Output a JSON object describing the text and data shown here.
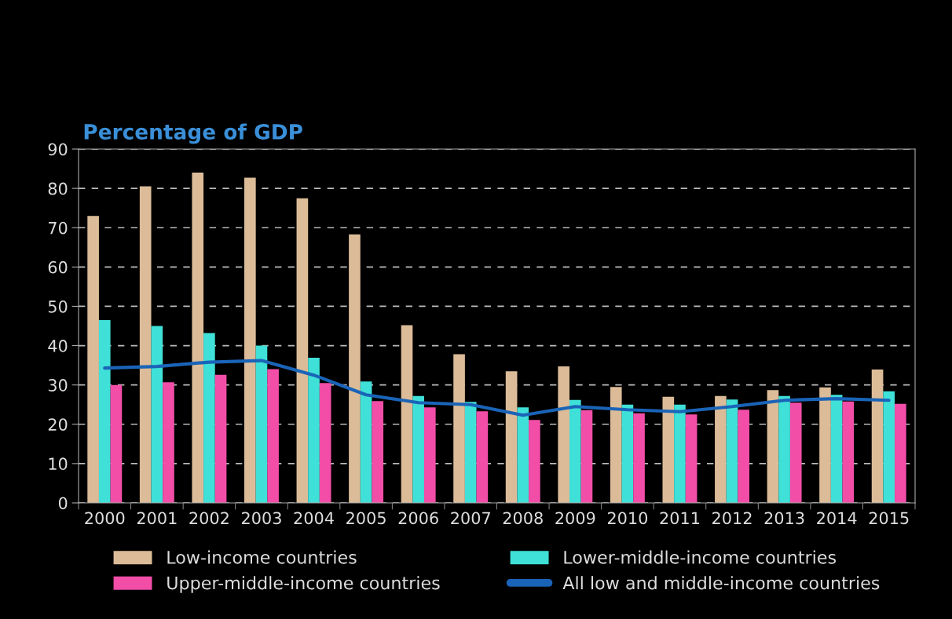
{
  "chart_data": {
    "type": "bar",
    "title": "Percentage of GDP",
    "categories": [
      "2000",
      "2001",
      "2002",
      "2003",
      "2004",
      "2005",
      "2006",
      "2007",
      "2008",
      "2009",
      "2010",
      "2011",
      "2012",
      "2013",
      "2014",
      "2015"
    ],
    "series": [
      {
        "name": "Low-income countries",
        "color": "#dcbc98",
        "values": [
          73,
          80.5,
          84,
          82.7,
          77.5,
          68.3,
          45.2,
          37.8,
          33.5,
          34.7,
          29.5,
          27,
          27.2,
          28.7,
          29.4,
          33.9
        ]
      },
      {
        "name": "Lower-middle-income countries",
        "color": "#3fe0d8",
        "values": [
          46.5,
          45,
          43.2,
          40,
          36.9,
          30.9,
          27.2,
          25.7,
          24.3,
          26.2,
          25,
          25,
          26.3,
          27.2,
          27.5,
          28.4
        ]
      },
      {
        "name": "Upper-middle-income countries",
        "color": "#f24ea8",
        "values": [
          30,
          30.7,
          32.6,
          34,
          30.5,
          25.9,
          24.3,
          23.3,
          21.1,
          23.6,
          22.8,
          22.5,
          23.7,
          25.5,
          25.8,
          25.2
        ]
      },
      {
        "name": "All low and middle-income countries",
        "color": "#1a64b8",
        "type": "line",
        "values": [
          34.3,
          34.7,
          35.8,
          36.2,
          32.5,
          27.5,
          25.5,
          25,
          22.3,
          24.5,
          23.7,
          23.2,
          24.5,
          26.1,
          26.5,
          26.1
        ]
      }
    ],
    "ylim": [
      0,
      90
    ],
    "yticks": [
      0,
      10,
      20,
      30,
      40,
      50,
      60,
      70,
      80,
      90
    ],
    "grid": "y",
    "legend": "bottom",
    "line_style": "solid",
    "marker": "none"
  }
}
